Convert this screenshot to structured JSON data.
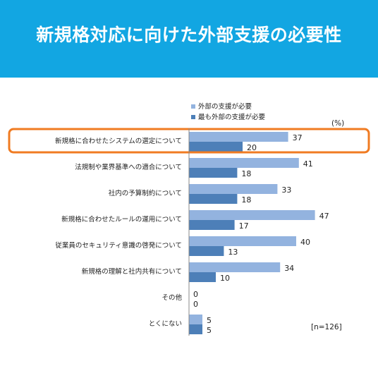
{
  "header": {
    "title": "新規格対応に向けた外部支援の必要性"
  },
  "chart_data": {
    "type": "bar",
    "orientation": "horizontal",
    "categories": [
      "新規格に合わせたシステムの選定について",
      "法規制や業界基準への適合について",
      "社内の予算制約について",
      "新規格に合わせたルールの運用について",
      "従業員のセキュリティ意識の啓発について",
      "新規格の理解と社内共有について",
      "その他",
      "とくにない"
    ],
    "series": [
      {
        "name": "外部の支援が必要",
        "values": [
          37,
          41,
          33,
          47,
          40,
          34,
          0,
          5
        ],
        "color": "#93b3df"
      },
      {
        "name": "最も外部の支援が必要",
        "values": [
          20,
          18,
          18,
          17,
          13,
          10,
          0,
          5
        ],
        "color": "#4d7fb8"
      }
    ],
    "unit": "(%)",
    "sample_note": "[n=126]",
    "highlighted_category": "新規格に合わせたシステムの選定について",
    "highlight_color": "#f07b22",
    "legend_position": "top",
    "grid": false
  }
}
